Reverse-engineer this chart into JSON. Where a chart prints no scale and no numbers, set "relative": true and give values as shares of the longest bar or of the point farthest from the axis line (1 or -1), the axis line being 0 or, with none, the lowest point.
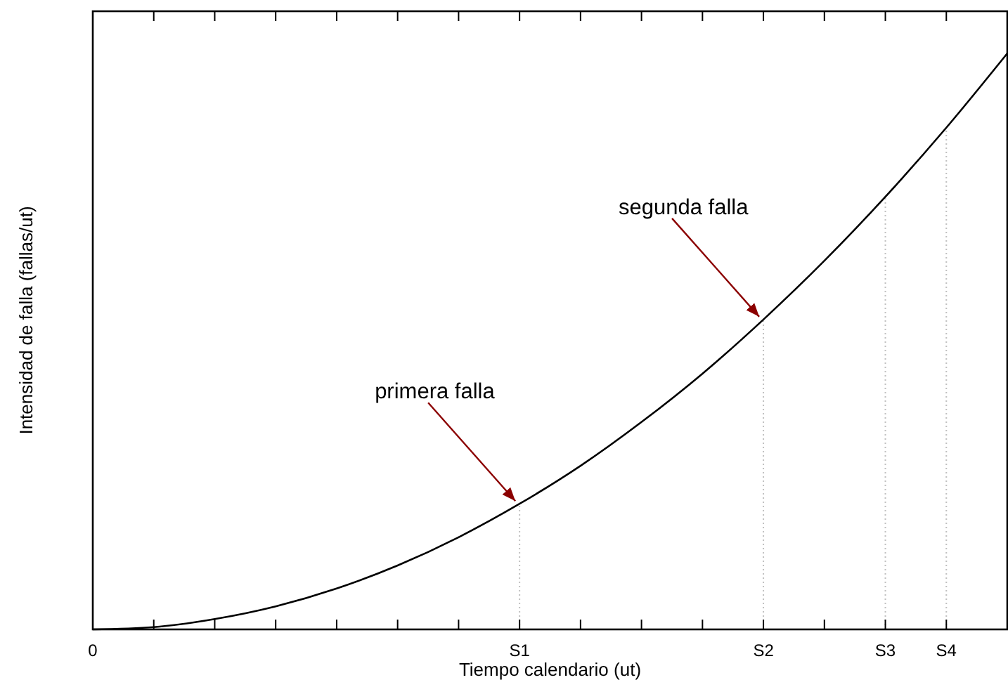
{
  "chart_data": {
    "type": "line",
    "relative": true,
    "xlabel": "Tiempo calendario (ut)",
    "ylabel": "Intensidad de falla (fallas/ut)",
    "categories": [
      "0",
      null,
      null,
      null,
      null,
      null,
      null,
      "S1",
      null,
      null,
      null,
      "S2",
      null,
      "S3",
      "S4",
      null
    ],
    "series": [
      {
        "color": "#000000",
        "values": [
          0,
          0.004,
          0.018,
          0.04,
          0.071,
          0.111,
          0.16,
          0.218,
          0.284,
          0.36,
          0.444,
          0.538,
          0.64,
          0.751,
          0.871,
          1
        ]
      }
    ],
    "ref_lines": [
      {
        "axis": "x",
        "value": "S1",
        "color": "#c0c0c0",
        "line_style": "dotted"
      },
      {
        "axis": "x",
        "value": "S2",
        "color": "#c0c0c0",
        "line_style": "dotted"
      },
      {
        "axis": "x",
        "value": "S3",
        "color": "#c0c0c0",
        "line_style": "dotted"
      },
      {
        "axis": "x",
        "value": "S4",
        "color": "#c0c0c0",
        "line_style": "dotted"
      }
    ],
    "annotations": [
      {
        "text": "primera falla",
        "x": "S1",
        "y": 0.218
      },
      {
        "text": "segunda falla",
        "x": "S2",
        "y": 0.538
      }
    ]
  }
}
